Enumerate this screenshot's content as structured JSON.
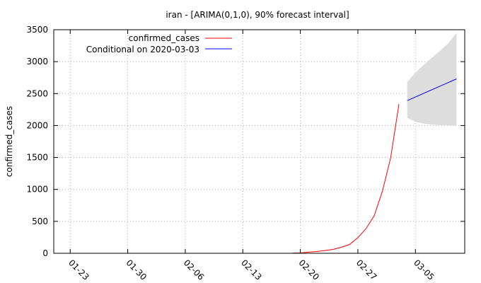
{
  "chart_data": {
    "type": "line",
    "title": "iran -  [ARIMA(0,1,0), 90% forecast interval]",
    "xlabel": "",
    "ylabel": "confirmed_cases",
    "x_tick_labels": [
      "01-23",
      "01-30",
      "02-06",
      "02-13",
      "02-20",
      "02-27",
      "03-05"
    ],
    "x_tick_days": [
      0,
      7,
      14,
      21,
      28,
      35,
      42
    ],
    "x_range_days": [
      -2,
      48
    ],
    "y_ticks": [
      0,
      500,
      1000,
      1500,
      2000,
      2500,
      3000,
      3500
    ],
    "ylim": [
      0,
      3500
    ],
    "grid": true,
    "legend_position": "top-left",
    "series": [
      {
        "name": "confirmed_cases",
        "color": "#ff0000",
        "points": [
          {
            "date": "02-19",
            "day": 27,
            "y": 2
          },
          {
            "date": "02-20",
            "day": 28,
            "y": 5
          },
          {
            "date": "02-21",
            "day": 29,
            "y": 18
          },
          {
            "date": "02-22",
            "day": 30,
            "y": 28
          },
          {
            "date": "02-23",
            "day": 31,
            "y": 43
          },
          {
            "date": "02-24",
            "day": 32,
            "y": 61
          },
          {
            "date": "02-25",
            "day": 33,
            "y": 95
          },
          {
            "date": "02-26",
            "day": 34,
            "y": 139
          },
          {
            "date": "02-27",
            "day": 35,
            "y": 245
          },
          {
            "date": "02-28",
            "day": 36,
            "y": 388
          },
          {
            "date": "02-29",
            "day": 37,
            "y": 593
          },
          {
            "date": "03-01",
            "day": 38,
            "y": 978
          },
          {
            "date": "03-02",
            "day": 39,
            "y": 1501
          },
          {
            "date": "03-03",
            "day": 40,
            "y": 2336
          }
        ]
      },
      {
        "name": "Conditional on 2020-03-03",
        "color": "#0000ff",
        "points": [
          {
            "date": "03-04",
            "day": 41,
            "y": 2390
          },
          {
            "date": "03-10",
            "day": 47,
            "y": 2730
          }
        ]
      }
    ],
    "forecast_interval": {
      "level": "90%",
      "color": "#dddddd",
      "upper": [
        {
          "day": 41,
          "y": 2680
        },
        {
          "day": 42,
          "y": 2830
        },
        {
          "day": 43,
          "y": 2950
        },
        {
          "day": 44,
          "y": 3060
        },
        {
          "day": 45,
          "y": 3170
        },
        {
          "day": 46,
          "y": 3290
        },
        {
          "day": 47,
          "y": 3450
        }
      ],
      "lower": [
        {
          "day": 41,
          "y": 2120
        },
        {
          "day": 42,
          "y": 2060
        },
        {
          "day": 43,
          "y": 2030
        },
        {
          "day": 44,
          "y": 2015
        },
        {
          "day": 45,
          "y": 2005
        },
        {
          "day": 46,
          "y": 2000
        },
        {
          "day": 47,
          "y": 2000
        }
      ]
    }
  }
}
